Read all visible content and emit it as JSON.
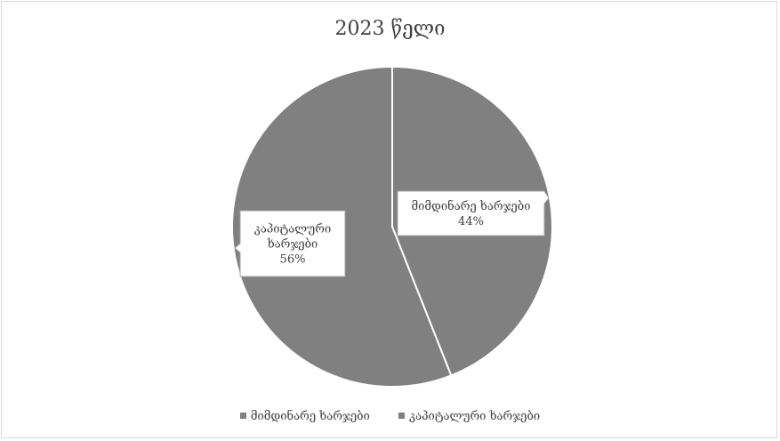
{
  "chart_data": {
    "type": "pie",
    "title": "2023 წელი",
    "categories": [
      "მიმდინარე ხარჯები",
      "კაპიტალური ხარჯები"
    ],
    "values": [
      44,
      56
    ],
    "units": "%",
    "data_labels": [
      {
        "lines": [
          "მიმდინარე ხარჯები"
        ],
        "percent": "44%"
      },
      {
        "lines": [
          "კაპიტალური",
          "ხარჯები"
        ],
        "percent": "56%"
      }
    ],
    "slice_color": "#808080",
    "separator_color": "#ffffff",
    "legend_position": "bottom"
  }
}
